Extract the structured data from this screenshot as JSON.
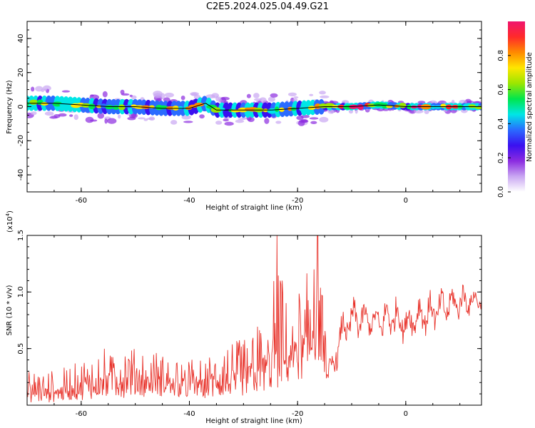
{
  "title": "C2E5.2024.025.04.49.G21",
  "colors": {
    "snr_line": "#e8332b",
    "background": "#ffffff",
    "axis": "#000000",
    "spectrum_ridge": "#000000",
    "colormap": [
      "#ffffff",
      "#c9a6f2",
      "#8b2be0",
      "#3a10f0",
      "#2a6bff",
      "#00e6e6",
      "#00e64d",
      "#9be600",
      "#ffe600",
      "#ff8a00",
      "#ff2a2a",
      "#f0146e"
    ]
  },
  "chart_data": [
    {
      "type": "heatmap",
      "name": "spectrogram",
      "xlabel": "Height of straight line (km)",
      "ylabel": "Frequency (Hz)",
      "xlim": [
        -70,
        14
      ],
      "ylim": [
        -50,
        50
      ],
      "xticks": [
        -60,
        -40,
        -20,
        0
      ],
      "yticks": [
        40,
        20,
        0,
        -20,
        -40
      ],
      "xtick_labels": [
        "-60",
        "-40",
        "-20",
        "0"
      ],
      "ytick_labels": [
        "40",
        "20",
        "0",
        "-20",
        "-40"
      ],
      "grid": false,
      "colorbar": {
        "label": "Normalized spectral amplitude",
        "range": [
          0.0,
          1.0
        ],
        "ticks": [
          0.0,
          0.2,
          0.4,
          0.6,
          0.8
        ],
        "tick_labels": [
          "0.0",
          "0.2",
          "0.4",
          "0.6",
          "0.8"
        ]
      },
      "ridge": {
        "x": [
          -70,
          -65,
          -60,
          -55,
          -50,
          -45,
          -40,
          -37,
          -35,
          -30,
          -25,
          -20,
          -15,
          -10,
          -5,
          0,
          5,
          10,
          14
        ],
        "y": [
          2,
          2,
          1,
          0,
          0,
          -1,
          -1,
          2,
          -2,
          -2,
          -2,
          -1,
          0,
          0,
          1,
          0,
          0,
          0,
          0
        ]
      }
    },
    {
      "type": "line",
      "name": "snr",
      "xlabel": "Height of straight line (km)",
      "ylabel": "SNR (10 * v/v)",
      "y_multiplier_label": "(x10",
      "y_multiplier_exp": "4",
      "y_multiplier_close": ")",
      "xlim": [
        -70,
        14
      ],
      "ylim": [
        0.0,
        1.5
      ],
      "xticks": [
        -60,
        -40,
        -20,
        0
      ],
      "yticks": [
        0.5,
        1.0,
        1.5
      ],
      "xtick_labels": [
        "-60",
        "-40",
        "-20",
        "0"
      ],
      "ytick_labels": [
        "0.5",
        "1.0",
        "1.5"
      ],
      "grid": false,
      "envelope": {
        "x": [
          -70,
          -66,
          -62,
          -58,
          -54,
          -50,
          -46,
          -42,
          -38,
          -34,
          -30,
          -27,
          -25,
          -24,
          -22,
          -20,
          -18,
          -16.5,
          -15.5,
          -14.5,
          -13.5,
          -12,
          -10,
          -8,
          -6,
          -4,
          -2,
          0,
          2,
          4,
          6,
          8,
          10,
          12,
          14
        ],
        "low": [
          0.02,
          0.02,
          0.04,
          0.05,
          0.06,
          0.07,
          0.08,
          0.05,
          0.06,
          0.06,
          0.08,
          0.1,
          0.12,
          0.1,
          0.15,
          0.2,
          0.25,
          0.4,
          0.35,
          0.2,
          0.18,
          0.45,
          0.55,
          0.6,
          0.62,
          0.55,
          0.58,
          0.55,
          0.6,
          0.62,
          0.65,
          0.72,
          0.75,
          0.8,
          0.85
        ],
        "high": [
          0.3,
          0.3,
          0.35,
          0.45,
          0.55,
          0.5,
          0.48,
          0.45,
          0.4,
          0.5,
          0.6,
          0.75,
          0.85,
          1.5,
          0.9,
          1.0,
          1.2,
          1.5,
          1.05,
          0.4,
          0.45,
          0.8,
          0.95,
          0.92,
          0.85,
          0.95,
          1.0,
          0.88,
          0.98,
          1.0,
          1.02,
          1.05,
          1.08,
          1.05,
          1.0
        ]
      },
      "spikes": [
        {
          "x": -23.8,
          "y": 1.5
        },
        {
          "x": -16.3,
          "y": 1.5
        },
        {
          "x": -17.0,
          "y": 1.2
        }
      ]
    }
  ]
}
